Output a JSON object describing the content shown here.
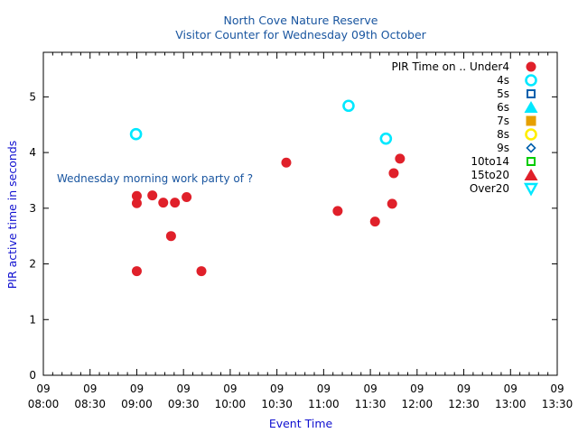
{
  "chart_data": {
    "type": "scatter",
    "title": "North Cove Nature Reserve",
    "subtitle": "Visitor Counter for Wednesday 09th October",
    "xlabel": "Event Time",
    "ylabel": "PIR active time in seconds",
    "annotation": "Wednesday morning work party of ?",
    "xlim": [
      480,
      810
    ],
    "ylim": [
      0,
      5.8
    ],
    "x_unit": "minutes since midnight",
    "x_ticks": [
      {
        "value": 480,
        "day": "09",
        "time": "08:00"
      },
      {
        "value": 510,
        "day": "09",
        "time": "08:30"
      },
      {
        "value": 540,
        "day": "09",
        "time": "09:00"
      },
      {
        "value": 570,
        "day": "09",
        "time": "09:30"
      },
      {
        "value": 600,
        "day": "09",
        "time": "10:00"
      },
      {
        "value": 630,
        "day": "09",
        "time": "10:30"
      },
      {
        "value": 660,
        "day": "09",
        "time": "11:00"
      },
      {
        "value": 690,
        "day": "09",
        "time": "11:30"
      },
      {
        "value": 720,
        "day": "09",
        "time": "12:00"
      },
      {
        "value": 750,
        "day": "09",
        "time": "12:30"
      },
      {
        "value": 780,
        "day": "09",
        "time": "13:00"
      },
      {
        "value": 810,
        "day": "09",
        "time": "13:30"
      }
    ],
    "y_ticks": [
      0,
      1,
      2,
      3,
      4,
      5
    ],
    "legend_title": "PIR Time on ..",
    "legend_position": "top-right",
    "series": [
      {
        "name": "Under4",
        "marker": "circle-filled",
        "color": "#e0202a",
        "points": [
          {
            "x": 540.0,
            "y": 3.22
          },
          {
            "x": 540.0,
            "y": 3.09
          },
          {
            "x": 540.0,
            "y": 1.87
          },
          {
            "x": 550.0,
            "y": 3.23
          },
          {
            "x": 557.0,
            "y": 3.1
          },
          {
            "x": 562.0,
            "y": 2.5
          },
          {
            "x": 564.5,
            "y": 3.1
          },
          {
            "x": 572.0,
            "y": 3.2
          },
          {
            "x": 581.5,
            "y": 1.87
          },
          {
            "x": 636.0,
            "y": 3.82
          },
          {
            "x": 669.0,
            "y": 2.95
          },
          {
            "x": 693.0,
            "y": 2.76
          },
          {
            "x": 704.0,
            "y": 3.08
          },
          {
            "x": 705.0,
            "y": 3.63
          },
          {
            "x": 709.0,
            "y": 3.89
          }
        ]
      },
      {
        "name": "4s",
        "marker": "circle-open",
        "color": "#00e8ff",
        "points": [
          {
            "x": 539.5,
            "y": 4.33
          },
          {
            "x": 676.0,
            "y": 4.84
          },
          {
            "x": 700.0,
            "y": 4.25
          }
        ]
      },
      {
        "name": "5s",
        "marker": "square-open",
        "color": "#0060ad",
        "points": []
      },
      {
        "name": "6s",
        "marker": "triangle-filled",
        "color": "#00e8ff",
        "points": []
      },
      {
        "name": "7s",
        "marker": "square-filled",
        "color": "#e69f00",
        "points": []
      },
      {
        "name": "8s",
        "marker": "circle-open",
        "color": "#ffee00",
        "points": []
      },
      {
        "name": "9s",
        "marker": "diamond-open",
        "color": "#0060ad",
        "points": []
      },
      {
        "name": "10to14",
        "marker": "square-open",
        "color": "#00cc00",
        "points": []
      },
      {
        "name": "15to20",
        "marker": "triangle-filled",
        "color": "#e0202a",
        "points": []
      },
      {
        "name": "Over20",
        "marker": "triangle-down-open",
        "color": "#00e8ff",
        "points": []
      }
    ]
  }
}
